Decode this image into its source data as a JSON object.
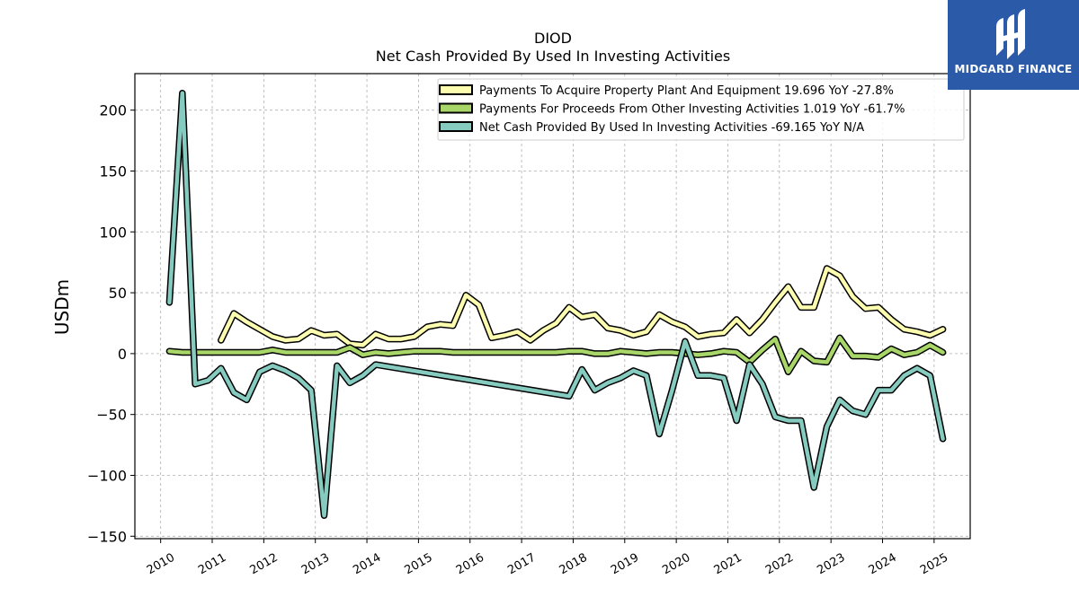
{
  "chart_data": {
    "type": "line",
    "title": "DIOD",
    "subtitle": "Net Cash Provided By Used In Investing Activities",
    "xlabel": "",
    "ylabel": "USDm",
    "xlim": [
      2009.5,
      2025.7
    ],
    "ylim": [
      -152,
      230
    ],
    "x_ticks": [
      2010,
      2011,
      2012,
      2013,
      2014,
      2015,
      2016,
      2017,
      2018,
      2019,
      2020,
      2021,
      2022,
      2023,
      2024,
      2025
    ],
    "y_ticks": [
      -150,
      -100,
      -50,
      0,
      50,
      100,
      150,
      200
    ],
    "y_tick_labels": [
      "−150",
      "−100",
      "−50",
      "0",
      "50",
      "100",
      "150",
      "200"
    ],
    "grid": true,
    "legend_position": "top-right",
    "series": [
      {
        "name": "Payments To Acquire Property Plant And Equipment",
        "legend_label": "Payments To Acquire Property Plant And Equipment  19.696 YoY -27.8%",
        "color": "#fdfdb0",
        "points": [
          [
            2011.17,
            11
          ],
          [
            2011.42,
            33
          ],
          [
            2011.67,
            26
          ],
          [
            2011.92,
            20
          ],
          [
            2012.17,
            14
          ],
          [
            2012.42,
            11
          ],
          [
            2012.67,
            12
          ],
          [
            2012.92,
            19
          ],
          [
            2013.17,
            15
          ],
          [
            2013.42,
            16
          ],
          [
            2013.67,
            8
          ],
          [
            2013.92,
            7
          ],
          [
            2014.17,
            16
          ],
          [
            2014.42,
            12
          ],
          [
            2014.67,
            12
          ],
          [
            2014.92,
            14
          ],
          [
            2015.17,
            22
          ],
          [
            2015.42,
            24
          ],
          [
            2015.67,
            23
          ],
          [
            2015.92,
            48
          ],
          [
            2016.17,
            40
          ],
          [
            2016.42,
            13
          ],
          [
            2016.67,
            15
          ],
          [
            2016.92,
            18
          ],
          [
            2017.17,
            11
          ],
          [
            2017.42,
            19
          ],
          [
            2017.67,
            25
          ],
          [
            2017.92,
            38
          ],
          [
            2018.17,
            30
          ],
          [
            2018.42,
            32
          ],
          [
            2018.67,
            21
          ],
          [
            2018.92,
            19
          ],
          [
            2019.17,
            15
          ],
          [
            2019.42,
            18
          ],
          [
            2019.67,
            32
          ],
          [
            2019.92,
            26
          ],
          [
            2020.17,
            22
          ],
          [
            2020.42,
            14
          ],
          [
            2020.67,
            16
          ],
          [
            2020.92,
            17
          ],
          [
            2021.17,
            28
          ],
          [
            2021.42,
            17
          ],
          [
            2021.67,
            28
          ],
          [
            2021.92,
            42
          ],
          [
            2022.17,
            55
          ],
          [
            2022.42,
            38
          ],
          [
            2022.67,
            38
          ],
          [
            2022.92,
            70
          ],
          [
            2023.17,
            64
          ],
          [
            2023.42,
            47
          ],
          [
            2023.67,
            37
          ],
          [
            2023.92,
            38
          ],
          [
            2024.17,
            28
          ],
          [
            2024.42,
            20
          ],
          [
            2024.67,
            18
          ],
          [
            2024.92,
            15
          ],
          [
            2025.17,
            20
          ]
        ]
      },
      {
        "name": "Payments For Proceeds From Other Investing Activities",
        "legend_label": "Payments For Proceeds From Other Investing Activities  1.019 YoY -61.7%",
        "color": "#a8d668",
        "points": [
          [
            2010.17,
            2
          ],
          [
            2010.42,
            1
          ],
          [
            2010.67,
            1
          ],
          [
            2010.92,
            1
          ],
          [
            2011.17,
            1
          ],
          [
            2011.42,
            1
          ],
          [
            2011.67,
            1
          ],
          [
            2011.92,
            1
          ],
          [
            2012.17,
            3
          ],
          [
            2012.42,
            1
          ],
          [
            2012.67,
            1
          ],
          [
            2012.92,
            1
          ],
          [
            2013.17,
            1
          ],
          [
            2013.42,
            1
          ],
          [
            2013.67,
            5
          ],
          [
            2013.92,
            -1
          ],
          [
            2014.17,
            1
          ],
          [
            2014.42,
            0
          ],
          [
            2014.67,
            1
          ],
          [
            2014.92,
            2
          ],
          [
            2015.17,
            2
          ],
          [
            2015.42,
            2
          ],
          [
            2015.67,
            1
          ],
          [
            2015.92,
            1
          ],
          [
            2016.17,
            1
          ],
          [
            2016.42,
            1
          ],
          [
            2016.67,
            1
          ],
          [
            2016.92,
            1
          ],
          [
            2017.17,
            1
          ],
          [
            2017.42,
            1
          ],
          [
            2017.67,
            1
          ],
          [
            2017.92,
            2
          ],
          [
            2018.17,
            2
          ],
          [
            2018.42,
            0
          ],
          [
            2018.67,
            0
          ],
          [
            2018.92,
            2
          ],
          [
            2019.17,
            1
          ],
          [
            2019.42,
            0
          ],
          [
            2019.67,
            1
          ],
          [
            2019.92,
            1
          ],
          [
            2020.17,
            0
          ],
          [
            2020.42,
            -1
          ],
          [
            2020.67,
            0
          ],
          [
            2020.92,
            2
          ],
          [
            2021.17,
            1
          ],
          [
            2021.42,
            -7
          ],
          [
            2021.67,
            3
          ],
          [
            2021.92,
            12
          ],
          [
            2022.17,
            -15
          ],
          [
            2022.42,
            2
          ],
          [
            2022.67,
            -6
          ],
          [
            2022.92,
            -7
          ],
          [
            2023.17,
            13
          ],
          [
            2023.42,
            -2
          ],
          [
            2023.67,
            -2
          ],
          [
            2023.92,
            -3
          ],
          [
            2024.17,
            4
          ],
          [
            2024.42,
            -1
          ],
          [
            2024.67,
            1
          ],
          [
            2024.92,
            7
          ],
          [
            2025.17,
            1
          ]
        ]
      },
      {
        "name": "Net Cash Provided By Used In Investing Activities",
        "legend_label": "Net Cash Provided By Used In Investing Activities  -69.165 YoY N/A",
        "color": "#86cbc0",
        "points": [
          [
            2010.17,
            42
          ],
          [
            2010.42,
            214
          ],
          [
            2010.67,
            -25
          ],
          [
            2010.92,
            -22
          ],
          [
            2011.17,
            -12
          ],
          [
            2011.42,
            -32
          ],
          [
            2011.67,
            -38
          ],
          [
            2011.92,
            -15
          ],
          [
            2012.17,
            -10
          ],
          [
            2012.42,
            -14
          ],
          [
            2012.67,
            -20
          ],
          [
            2012.92,
            -30
          ],
          [
            2013.17,
            -133
          ],
          [
            2013.42,
            -10
          ],
          [
            2013.67,
            -24
          ],
          [
            2013.92,
            -18
          ],
          [
            2014.17,
            -9
          ],
          [
            2017.92,
            -35
          ],
          [
            2018.17,
            -13
          ],
          [
            2018.42,
            -30
          ],
          [
            2018.67,
            -24
          ],
          [
            2018.92,
            -20
          ],
          [
            2019.17,
            -14
          ],
          [
            2019.42,
            -18
          ],
          [
            2019.67,
            -66
          ],
          [
            2019.92,
            -30
          ],
          [
            2020.17,
            10
          ],
          [
            2020.42,
            -18
          ],
          [
            2020.67,
            -18
          ],
          [
            2020.92,
            -20
          ],
          [
            2021.17,
            -55
          ],
          [
            2021.42,
            -9
          ],
          [
            2021.67,
            -25
          ],
          [
            2021.92,
            -52
          ],
          [
            2022.17,
            -55
          ],
          [
            2022.42,
            -55
          ],
          [
            2022.67,
            -110
          ],
          [
            2022.92,
            -60
          ],
          [
            2023.17,
            -38
          ],
          [
            2023.42,
            -47
          ],
          [
            2023.67,
            -50
          ],
          [
            2023.92,
            -30
          ],
          [
            2024.17,
            -30
          ],
          [
            2024.42,
            -18
          ],
          [
            2024.67,
            -12
          ],
          [
            2024.92,
            -18
          ],
          [
            2025.17,
            -70
          ]
        ]
      }
    ]
  },
  "logo": {
    "text": "MIDGARD FINANCE",
    "icon": "midgard-logo-icon",
    "background": "#2a5aa8"
  }
}
